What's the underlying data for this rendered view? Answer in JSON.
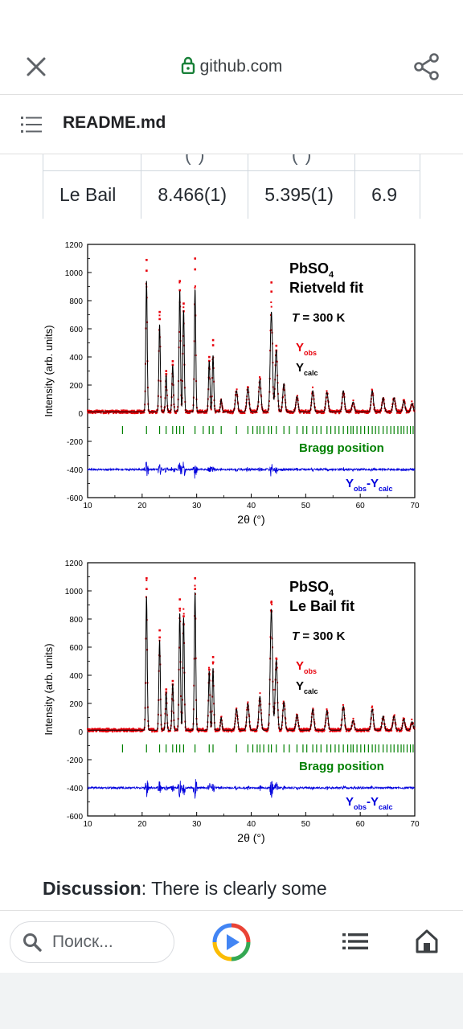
{
  "browser": {
    "url": "github.com",
    "page_title": "README.md",
    "icons": {
      "close": "close-icon",
      "lock": "lock-icon",
      "share": "share-icon",
      "list": "list-icon"
    }
  },
  "table": {
    "partial_header": [
      "(°)",
      "(°)",
      ""
    ],
    "row": {
      "method": "Le Bail",
      "a": "8.466(1)",
      "b": "5.395(1)",
      "c": "6.9"
    }
  },
  "figures": [
    {
      "compound": "PbSO",
      "compound_sub": "4",
      "fit": "Rietveld fit",
      "temperature_label": "T",
      "temperature_value": "= 300 K",
      "yobs": "Y",
      "yobs_sub": "obs",
      "ycalc": "Y",
      "ycalc_sub": "calc",
      "bragg": "Bragg position",
      "diff_a": "Y",
      "diff_a_sub": "obs",
      "diff_b": "-Y",
      "diff_b_sub": "calc",
      "xlabel": "2θ (°)",
      "ylabel": "Intensity (arb. units)"
    },
    {
      "compound": "PbSO",
      "compound_sub": "4",
      "fit": "Le Bail fit",
      "temperature_label": "T",
      "temperature_value": "= 300 K",
      "yobs": "Y",
      "yobs_sub": "obs",
      "ycalc": "Y",
      "ycalc_sub": "calc",
      "bragg": "Bragg position",
      "diff_a": "Y",
      "diff_a_sub": "obs",
      "diff_b": "-Y",
      "diff_b_sub": "calc",
      "xlabel": "2θ (°)",
      "ylabel": "Intensity (arb. units)"
    }
  ],
  "chart_data": [
    {
      "type": "line",
      "title": "PbSO4 Rietveld fit",
      "xlabel": "2θ (°)",
      "ylabel": "Intensity (arb. units)",
      "xlim": [
        10,
        70
      ],
      "ylim": [
        -600,
        1200
      ],
      "xticks": [
        10,
        20,
        30,
        40,
        50,
        60,
        70
      ],
      "yticks": [
        -600,
        -400,
        -200,
        0,
        200,
        400,
        600,
        800,
        1000,
        1200
      ],
      "series": [
        {
          "name": "Yobs",
          "color": "#e8000b",
          "style": "points"
        },
        {
          "name": "Ycalc",
          "color": "#000000",
          "style": "line"
        },
        {
          "name": "Bragg position",
          "color": "#008000",
          "style": "ticks",
          "y": -120
        },
        {
          "name": "Yobs-Ycalc",
          "color": "#0000dd",
          "style": "line",
          "offset": -400
        }
      ],
      "baseline": 10,
      "peaks": [
        [
          20.8,
          930
        ],
        [
          23.2,
          620
        ],
        [
          24.4,
          260
        ],
        [
          25.6,
          330
        ],
        [
          26.9,
          860
        ],
        [
          27.6,
          720
        ],
        [
          29.7,
          870
        ],
        [
          32.3,
          360
        ],
        [
          33.0,
          400
        ],
        [
          34.5,
          90
        ],
        [
          37.3,
          150
        ],
        [
          39.4,
          170
        ],
        [
          41.6,
          230
        ],
        [
          43.7,
          710
        ],
        [
          44.6,
          440
        ],
        [
          46.0,
          200
        ],
        [
          48.4,
          110
        ],
        [
          51.3,
          150
        ],
        [
          53.9,
          140
        ],
        [
          56.9,
          150
        ],
        [
          58.7,
          70
        ],
        [
          62.2,
          150
        ],
        [
          64.2,
          100
        ],
        [
          66.2,
          100
        ],
        [
          68.0,
          80
        ],
        [
          69.5,
          60
        ]
      ],
      "obs_peaks": [
        [
          20.8,
          1090
        ],
        [
          23.2,
          720
        ],
        [
          24.4,
          300
        ],
        [
          25.6,
          370
        ],
        [
          26.9,
          940
        ],
        [
          27.6,
          780
        ],
        [
          29.7,
          1100
        ],
        [
          32.3,
          400
        ],
        [
          33.0,
          520
        ],
        [
          43.7,
          930
        ],
        [
          44.6,
          480
        ]
      ],
      "bragg_positions": [
        16.4,
        20.8,
        23.2,
        24.4,
        25.6,
        26.3,
        26.9,
        27.6,
        29.7,
        31.2,
        32.3,
        33.0,
        34.5,
        37.3,
        39.4,
        40.3,
        41.1,
        41.6,
        42.3,
        43.2,
        43.7,
        44.6,
        46.0,
        47.0,
        48.4,
        49.5,
        50.2,
        51.3,
        52.0,
        52.8,
        53.9,
        54.6,
        55.4,
        56.1,
        56.9,
        57.7,
        58.3,
        58.7,
        59.4,
        60.1,
        60.8,
        61.5,
        62.2,
        62.8,
        63.4,
        64.2,
        64.9,
        65.6,
        66.2,
        66.9,
        67.5,
        68.0,
        68.6,
        69.2,
        69.7
      ]
    },
    {
      "type": "line",
      "title": "PbSO4 Le Bail fit",
      "xlabel": "2θ (°)",
      "ylabel": "Intensity (arb. units)",
      "xlim": [
        10,
        70
      ],
      "ylim": [
        -600,
        1200
      ],
      "xticks": [
        10,
        20,
        30,
        40,
        50,
        60,
        70
      ],
      "yticks": [
        -600,
        -400,
        -200,
        0,
        200,
        400,
        600,
        800,
        1000,
        1200
      ],
      "series": [
        {
          "name": "Yobs",
          "color": "#e8000b",
          "style": "points"
        },
        {
          "name": "Ycalc",
          "color": "#000000",
          "style": "line"
        },
        {
          "name": "Bragg position",
          "color": "#008000",
          "style": "ticks",
          "y": -120
        },
        {
          "name": "Yobs-Ycalc",
          "color": "#0000dd",
          "style": "line",
          "offset": -400
        }
      ],
      "baseline": 10,
      "peaks": [
        [
          20.8,
          950
        ],
        [
          23.2,
          640
        ],
        [
          24.4,
          270
        ],
        [
          25.6,
          330
        ],
        [
          26.9,
          830
        ],
        [
          27.6,
          800
        ],
        [
          29.7,
          980
        ],
        [
          32.3,
          420
        ],
        [
          33.0,
          440
        ],
        [
          34.5,
          90
        ],
        [
          37.3,
          150
        ],
        [
          39.4,
          190
        ],
        [
          41.6,
          240
        ],
        [
          43.7,
          860
        ],
        [
          44.6,
          500
        ],
        [
          46.0,
          200
        ],
        [
          48.4,
          110
        ],
        [
          51.3,
          150
        ],
        [
          53.9,
          140
        ],
        [
          56.9,
          170
        ],
        [
          58.7,
          70
        ],
        [
          62.2,
          150
        ],
        [
          64.2,
          100
        ],
        [
          66.2,
          100
        ],
        [
          68.0,
          80
        ],
        [
          69.5,
          60
        ]
      ],
      "obs_peaks": [
        [
          20.8,
          1090
        ],
        [
          23.2,
          720
        ],
        [
          24.4,
          300
        ],
        [
          25.6,
          360
        ],
        [
          26.9,
          940
        ],
        [
          27.6,
          820
        ],
        [
          29.7,
          1090
        ],
        [
          32.3,
          440
        ],
        [
          33.0,
          530
        ],
        [
          43.7,
          920
        ],
        [
          44.6,
          520
        ]
      ],
      "bragg_positions": [
        16.4,
        20.8,
        23.2,
        24.4,
        25.6,
        26.3,
        26.9,
        27.6,
        29.7,
        32.3,
        33.0,
        37.3,
        39.4,
        40.3,
        41.1,
        41.6,
        42.3,
        43.2,
        43.7,
        44.6,
        46.0,
        47.0,
        48.4,
        49.5,
        50.2,
        51.3,
        52.0,
        52.8,
        53.9,
        54.6,
        55.4,
        56.1,
        56.9,
        57.7,
        58.3,
        58.7,
        59.4,
        60.1,
        60.8,
        61.5,
        62.2,
        62.8,
        63.4,
        64.2,
        64.9,
        65.6,
        66.2,
        66.9,
        67.5,
        68.0,
        68.6,
        69.2,
        69.7
      ]
    }
  ],
  "discussion": {
    "label": "Discussion",
    "text": ": There is clearly some"
  },
  "bottom_bar": {
    "search_placeholder": "Поиск...",
    "icons": {
      "search": "search-icon",
      "play": "google-play-icon",
      "menu": "list-menu-icon",
      "home": "home-icon"
    }
  }
}
